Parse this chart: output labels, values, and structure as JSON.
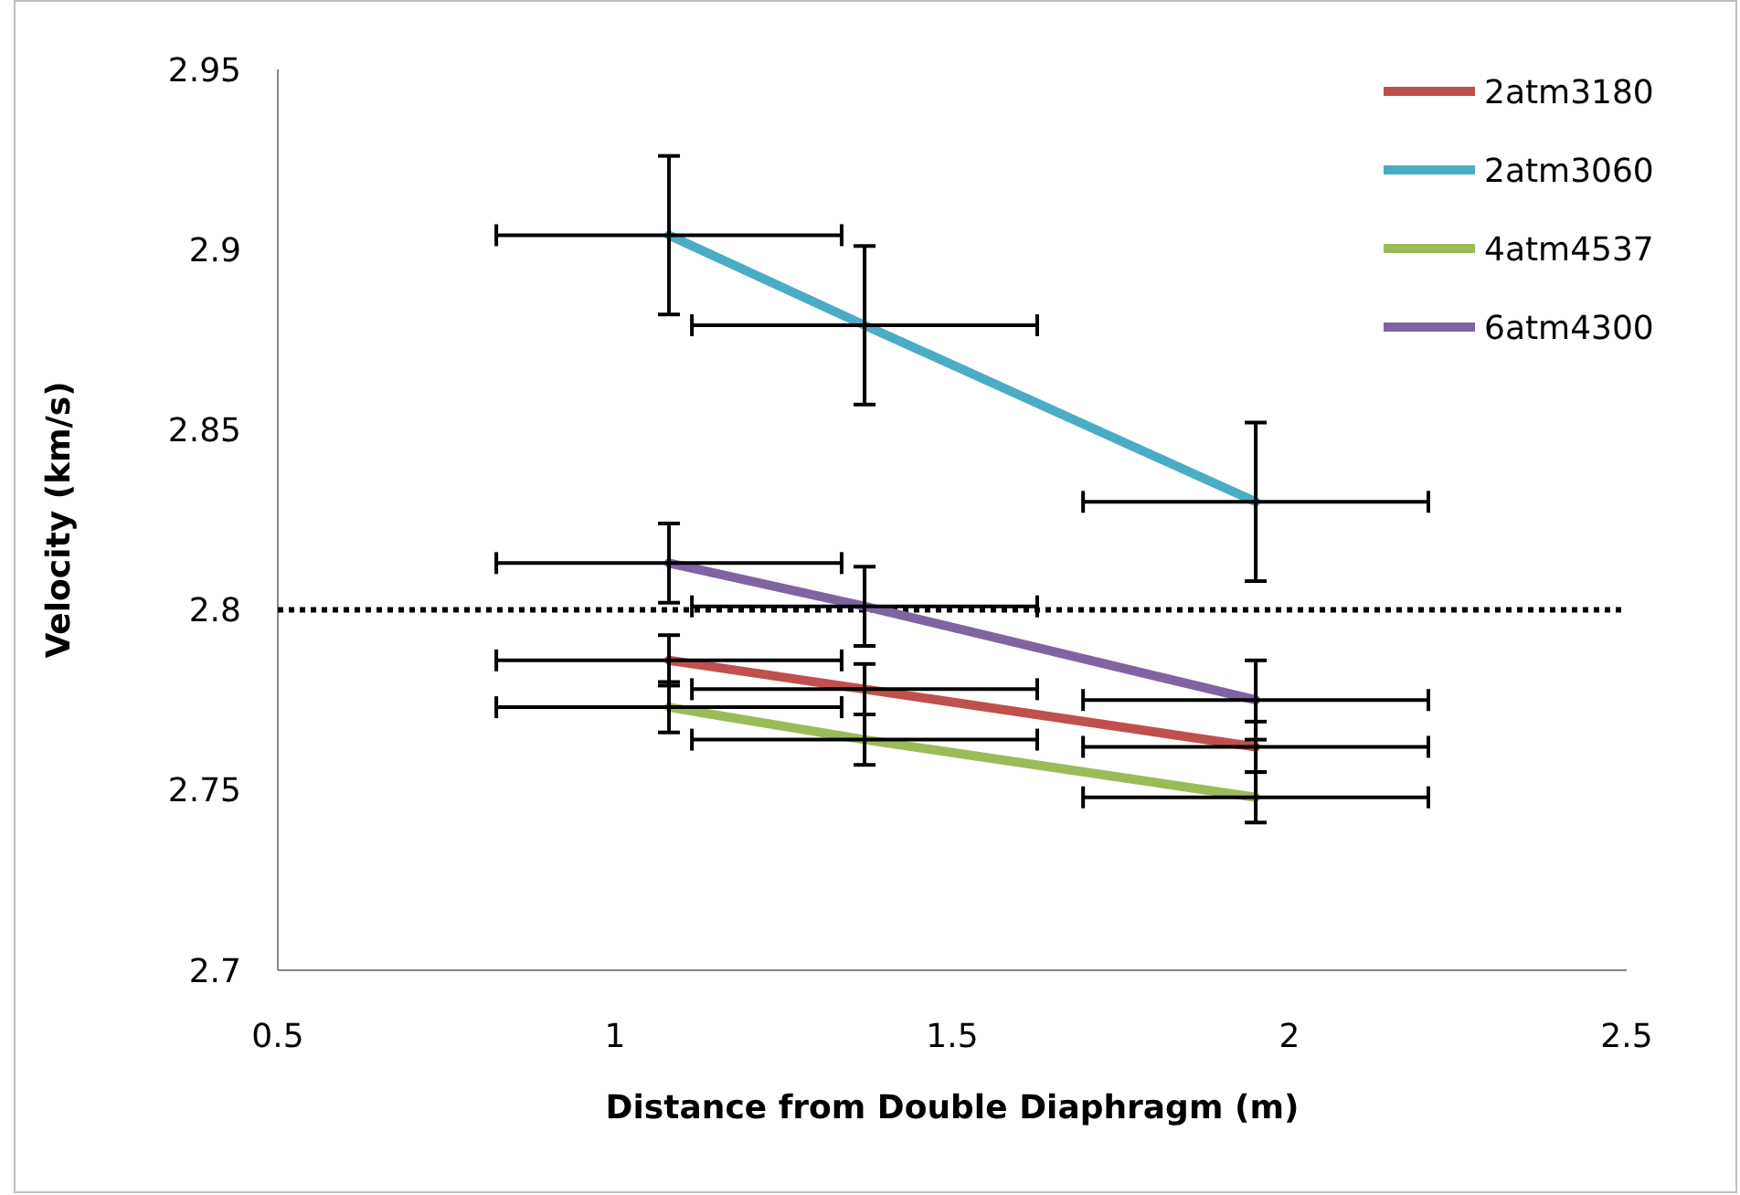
{
  "chart_data": {
    "type": "line",
    "xlabel": "Distance from Double Diaphragm (m)",
    "ylabel": "Velocity (km/s)",
    "xlim": [
      0.5,
      2.5
    ],
    "xticks": [
      0.5,
      1,
      1.5,
      2,
      2.5
    ],
    "ylim": [
      2.7,
      2.95
    ],
    "yticks": [
      2.7,
      2.75,
      2.8,
      2.85,
      2.9,
      2.95
    ],
    "x": [
      1.08,
      1.37,
      1.95
    ],
    "grid": false,
    "legend": "top right",
    "marker": "none",
    "line_style": "solid",
    "series": [
      {
        "name": "2atm3180",
        "color": "#c0504d",
        "values": [
          2.786,
          2.778,
          2.762
        ],
        "errors": [
          0.007,
          0.007,
          0.007
        ],
        "xerrors": [
          0.256,
          0.256,
          0.256
        ]
      },
      {
        "name": "2atm3060",
        "color": "#4bacc6",
        "values": [
          2.904,
          2.879,
          2.83
        ],
        "errors": [
          0.022,
          0.022,
          0.022
        ],
        "xerrors": [
          0.256,
          0.256,
          0.256
        ]
      },
      {
        "name": "4atm4537",
        "color": "#9bbb59",
        "values": [
          2.773,
          2.764,
          2.748
        ],
        "errors": [
          0.007,
          0.007,
          0.007
        ],
        "xerrors": [
          0.256,
          0.256,
          0.256
        ]
      },
      {
        "name": "6atm4300",
        "color": "#8064a2",
        "values": [
          2.813,
          2.801,
          2.775
        ],
        "errors": [
          0.011,
          0.011,
          0.011
        ],
        "xerrors": [
          0.256,
          0.256,
          0.256
        ]
      }
    ],
    "ref_lines": [
      {
        "axis": "y",
        "value": 2.8,
        "color": "#000000",
        "line_style": "dotted"
      }
    ]
  }
}
